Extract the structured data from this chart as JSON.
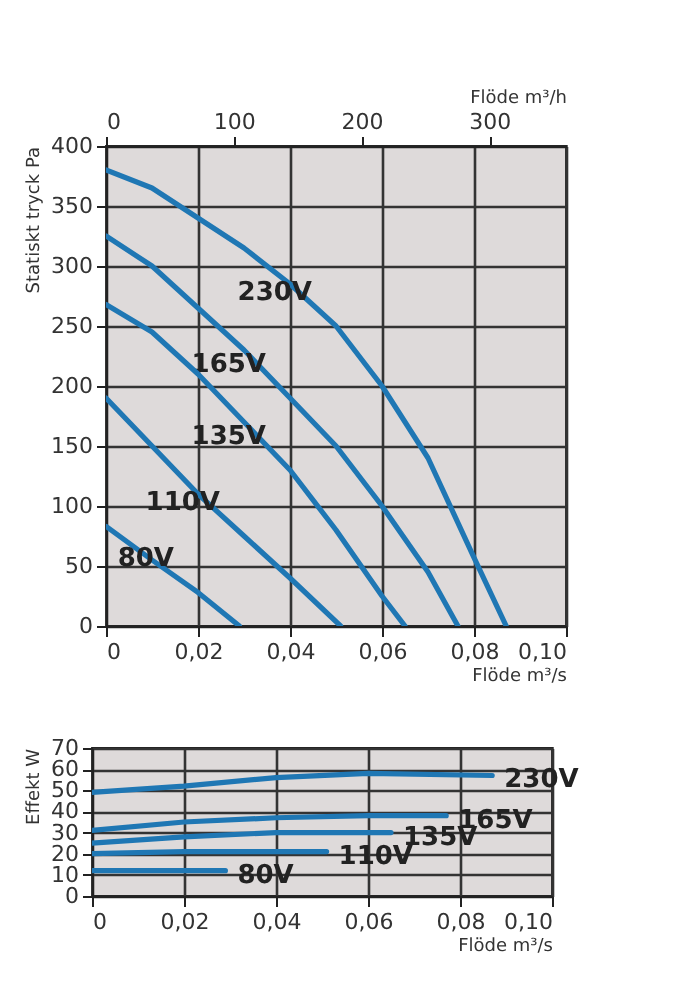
{
  "chart_data": [
    {
      "type": "line",
      "xlabel": "Flöde m³/s",
      "ylabel": "Statiskt tryck Pa",
      "x2label": "Flöde m³/h",
      "xlim": [
        0,
        0.1
      ],
      "xticks": [
        0,
        {
          "value": 0.02,
          "label": "0,02"
        },
        {
          "value": 0.04,
          "label": "0,04"
        },
        {
          "value": 0.06,
          "label": "0,06"
        },
        {
          "value": 0.08,
          "label": "0,08"
        },
        {
          "value": 0.1,
          "label": "0,10"
        }
      ],
      "x2lim": [
        0,
        360
      ],
      "x2ticks": [
        0,
        100,
        200,
        300
      ],
      "ylim": [
        0,
        400
      ],
      "yticks": [
        0,
        50,
        100,
        150,
        200,
        250,
        300,
        350,
        400
      ],
      "grid": true,
      "legend": false,
      "marker": "none",
      "line_style": "solid",
      "series": [
        {
          "name": "230V",
          "color": "#1f77b4",
          "x": [
            0,
            0.01,
            0.02,
            0.03,
            0.04,
            0.05,
            0.06,
            0.07,
            0.08,
            0.087
          ],
          "values": [
            380,
            365,
            340,
            315,
            285,
            250,
            200,
            140,
            57,
            0
          ]
        },
        {
          "name": "165V",
          "color": "#1f77b4",
          "x": [
            0,
            0.01,
            0.02,
            0.03,
            0.04,
            0.05,
            0.06,
            0.07,
            0.0765
          ],
          "values": [
            325,
            300,
            265,
            230,
            190,
            150,
            100,
            45,
            0
          ]
        },
        {
          "name": "135V",
          "color": "#1f77b4",
          "x": [
            0,
            0.01,
            0.02,
            0.03,
            0.04,
            0.05,
            0.06,
            0.065
          ],
          "values": [
            268,
            245,
            210,
            170,
            130,
            80,
            25,
            0
          ]
        },
        {
          "name": "110V",
          "color": "#1f77b4",
          "x": [
            0,
            0.01,
            0.02,
            0.03,
            0.04,
            0.051
          ],
          "values": [
            190,
            150,
            110,
            75,
            40,
            0
          ]
        },
        {
          "name": "80V",
          "color": "#1f77b4",
          "x": [
            0,
            0.01,
            0.02,
            0.029
          ],
          "values": [
            83,
            55,
            28,
            0
          ]
        }
      ]
    },
    {
      "type": "line",
      "xlabel": "Flöde m³/s",
      "ylabel": "Effekt W",
      "xlim": [
        0,
        0.1
      ],
      "xticks": [
        0,
        {
          "value": 0.02,
          "label": "0,02"
        },
        {
          "value": 0.04,
          "label": "0,04"
        },
        {
          "value": 0.06,
          "label": "0,06"
        },
        {
          "value": 0.08,
          "label": "0,08"
        },
        {
          "value": 0.1,
          "label": "0,10"
        }
      ],
      "ylim": [
        0,
        70
      ],
      "yticks": [
        0,
        10,
        20,
        30,
        40,
        50,
        60,
        70
      ],
      "grid": true,
      "legend": false,
      "marker": "none",
      "line_style": "solid",
      "series": [
        {
          "name": "230V",
          "color": "#1f77b4",
          "x": [
            0,
            0.02,
            0.04,
            0.06,
            0.087
          ],
          "values": [
            49,
            52,
            56,
            58,
            57
          ]
        },
        {
          "name": "165V",
          "color": "#1f77b4",
          "x": [
            0,
            0.02,
            0.04,
            0.06,
            0.077
          ],
          "values": [
            31,
            35,
            37,
            38,
            38
          ]
        },
        {
          "name": "135V",
          "color": "#1f77b4",
          "x": [
            0,
            0.02,
            0.04,
            0.065
          ],
          "values": [
            25,
            28,
            30,
            30
          ]
        },
        {
          "name": "110V",
          "color": "#1f77b4",
          "x": [
            0,
            0.02,
            0.04,
            0.051
          ],
          "values": [
            20,
            21,
            21,
            21
          ]
        },
        {
          "name": "80V",
          "color": "#1f77b4",
          "x": [
            0,
            0.029
          ],
          "values": [
            12,
            12
          ]
        }
      ]
    }
  ]
}
